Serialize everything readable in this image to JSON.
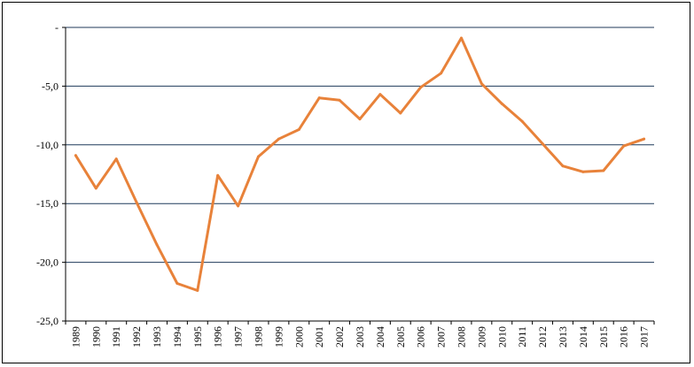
{
  "chart_data": {
    "type": "line",
    "title": "",
    "xlabel": "",
    "ylabel": "",
    "categories": [
      "1989",
      "1990",
      "1991",
      "1992",
      "1993",
      "1994",
      "1995",
      "1996",
      "1997",
      "1998",
      "1999",
      "2000",
      "2001",
      "2002",
      "2003",
      "2004",
      "2005",
      "2006",
      "2007",
      "2008",
      "2009",
      "2010",
      "2011",
      "2012",
      "2013",
      "2014",
      "2015",
      "2016",
      "2017"
    ],
    "series": [
      {
        "color": "#e8823a",
        "values": [
          -10.9,
          -13.7,
          -11.2,
          -14.9,
          -18.5,
          -21.8,
          -22.4,
          -12.6,
          -15.2,
          -11.0,
          -9.5,
          -8.7,
          -6.0,
          -6.2,
          -7.8,
          -5.7,
          -7.3,
          -5.1,
          -3.9,
          -0.9,
          -4.8,
          -6.5,
          -8.0,
          -9.9,
          -11.8,
          -12.3,
          -12.2,
          -10.1,
          -9.5
        ]
      }
    ],
    "ylim": [
      -25,
      0
    ],
    "yticks": [
      0,
      -5,
      -10,
      -15,
      -20,
      -25
    ],
    "ytick_labels": [
      "-",
      "-5,0",
      "-10,0",
      "-15,0",
      "-20,0",
      "-25,0"
    ],
    "grid": true,
    "legend": "none"
  }
}
